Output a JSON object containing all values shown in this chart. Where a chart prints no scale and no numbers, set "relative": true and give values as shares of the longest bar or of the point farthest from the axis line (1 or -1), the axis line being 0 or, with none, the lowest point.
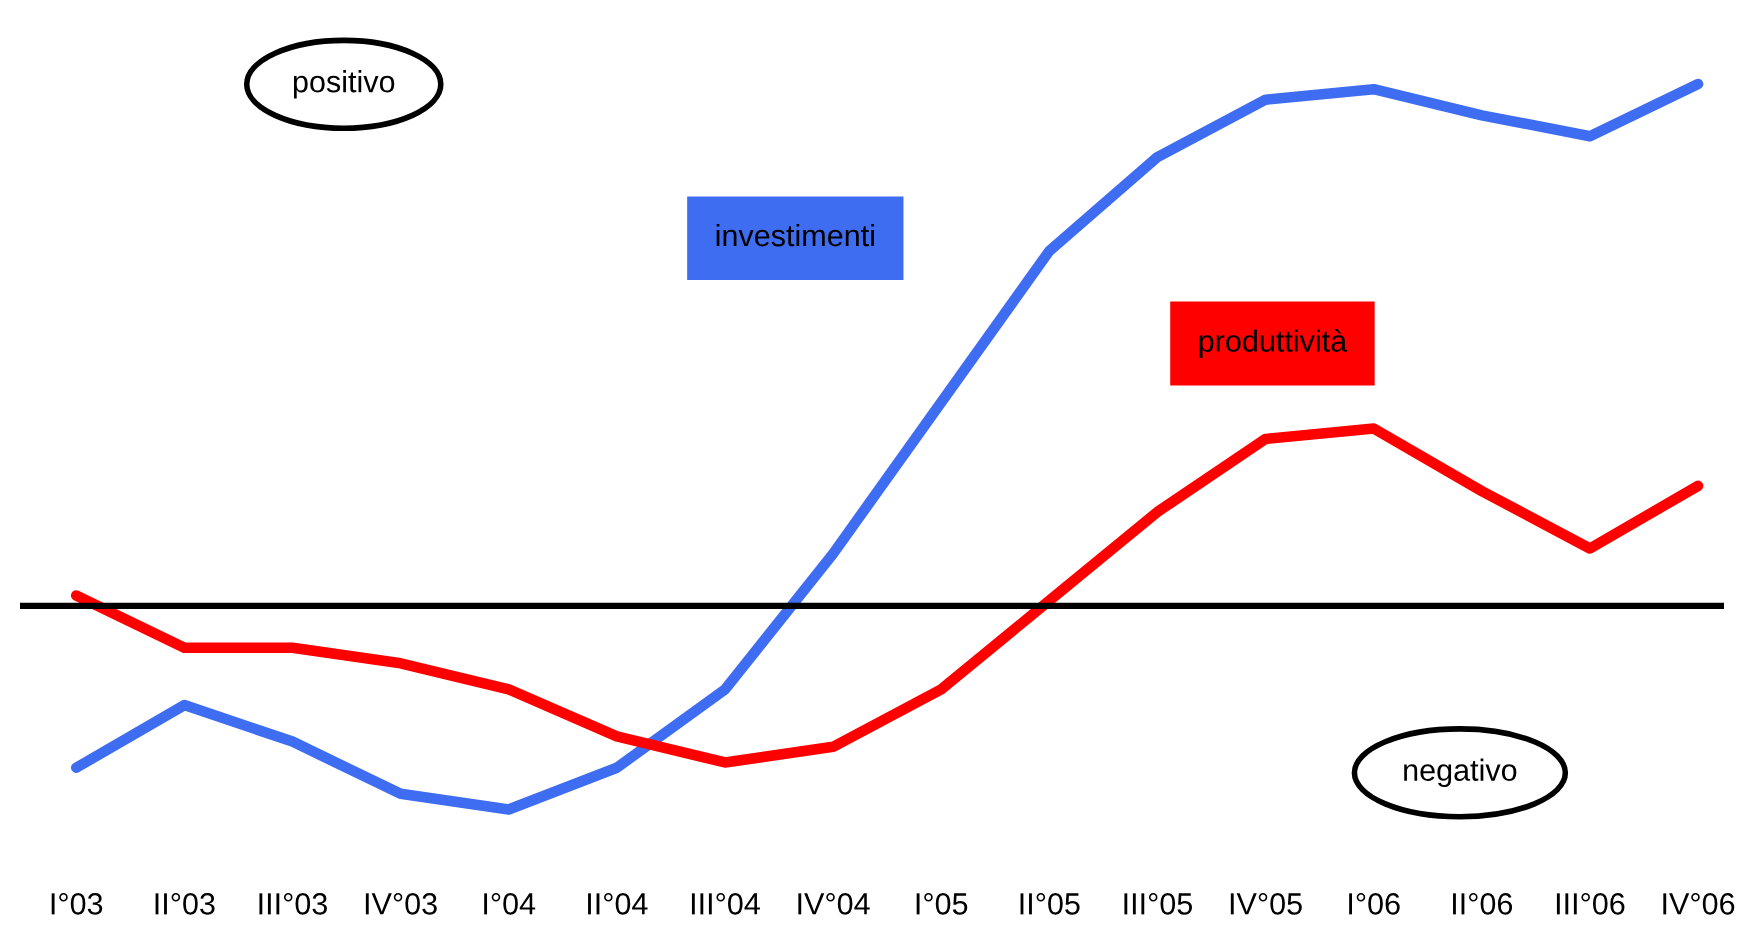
{
  "chart_data": {
    "type": "line",
    "relative": true,
    "tick_labels": "x",
    "categories": [
      "I°03",
      "II°03",
      "III°03",
      "IV°03",
      "I°04",
      "II°04",
      "III°04",
      "IV°04",
      "I°05",
      "II°05",
      "III°05",
      "IV°05",
      "I°06",
      "II°06",
      "III°06",
      "IV°06"
    ],
    "series": [
      {
        "name": "investimenti",
        "color": "#3f6df2",
        "values": [
          -0.31,
          -0.19,
          -0.26,
          -0.36,
          -0.39,
          -0.31,
          -0.16,
          0.1,
          0.39,
          0.68,
          0.86,
          0.97,
          0.99,
          0.94,
          0.9,
          1.0
        ]
      },
      {
        "name": "produttività",
        "color": "#ff0000",
        "values": [
          0.02,
          -0.08,
          -0.08,
          -0.11,
          -0.16,
          -0.25,
          -0.3,
          -0.27,
          -0.16,
          0.01,
          0.18,
          0.32,
          0.34,
          0.22,
          0.11,
          0.23
        ]
      }
    ],
    "annotations": [
      "positivo",
      "negativo"
    ]
  }
}
